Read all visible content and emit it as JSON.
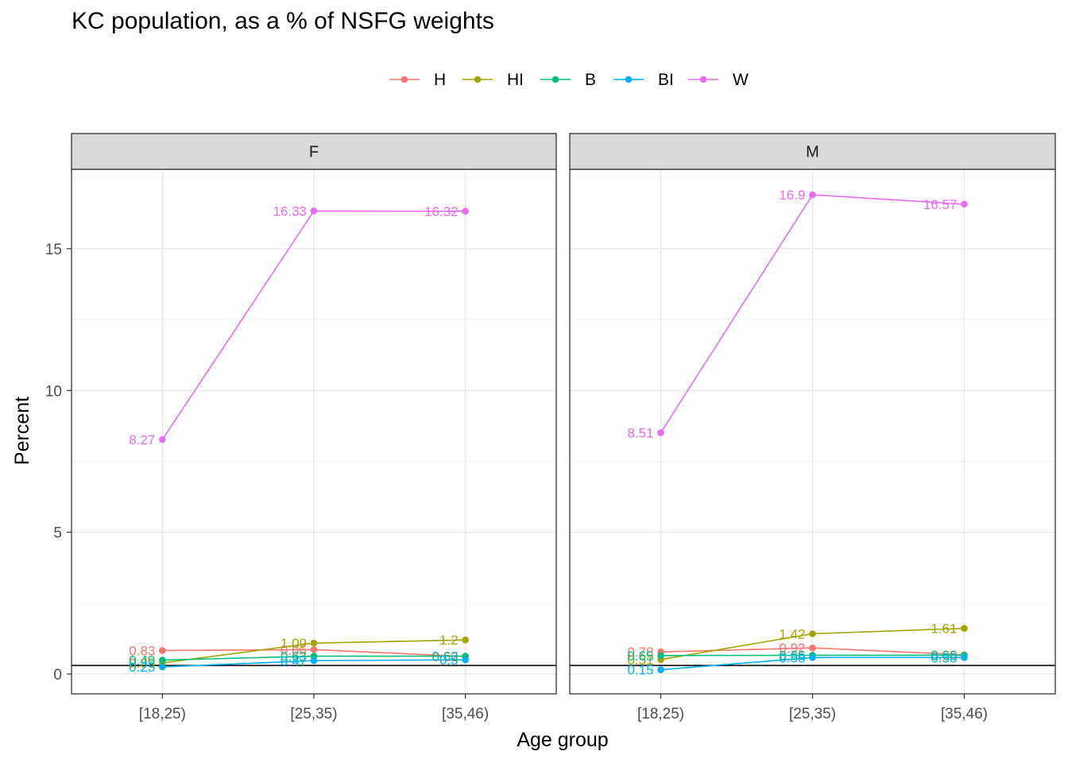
{
  "chart_data": {
    "type": "line",
    "title": "KC population, as a % of NSFG weights",
    "xlabel": "Age group",
    "ylabel": "Percent",
    "categories": [
      "[18,25)",
      "[25,35)",
      "[35,46)"
    ],
    "ylim": [
      -0.7,
      17.8
    ],
    "yticks": [
      0,
      5,
      10,
      15
    ],
    "reference_line": 0.3,
    "grid": true,
    "legend_position": "top",
    "legend": [
      {
        "name": "H",
        "color": "#F8766D"
      },
      {
        "name": "HI",
        "color": "#A3A500"
      },
      {
        "name": "B",
        "color": "#00BF7D"
      },
      {
        "name": "BI",
        "color": "#00B0F6"
      },
      {
        "name": "W",
        "color": "#E76BF3"
      }
    ],
    "panels": [
      {
        "facet": "F",
        "series": [
          {
            "name": "H",
            "values": [
              0.83,
              0.86,
              0.62
            ],
            "labels": [
              "0.83",
              "0.86",
              "0.62"
            ]
          },
          {
            "name": "HI",
            "values": [
              0.39,
              1.09,
              1.2
            ],
            "labels": [
              "0.39",
              "1.09",
              "1.2"
            ]
          },
          {
            "name": "B",
            "values": [
              0.49,
              0.63,
              0.63
            ],
            "labels": [
              "0.49",
              "0.63",
              "0.63"
            ]
          },
          {
            "name": "BI",
            "values": [
              0.25,
              0.47,
              0.5
            ],
            "labels": [
              "0.25",
              "0.47",
              "0.5"
            ]
          },
          {
            "name": "W",
            "values": [
              8.27,
              16.33,
              16.32
            ],
            "labels": [
              "8.27",
              "16.33",
              "16.32"
            ]
          }
        ]
      },
      {
        "facet": "M",
        "series": [
          {
            "name": "H",
            "values": [
              0.78,
              0.92,
              0.68
            ],
            "labels": [
              "0.78",
              "0.92",
              "0.68"
            ]
          },
          {
            "name": "HI",
            "values": [
              0.51,
              1.42,
              1.61
            ],
            "labels": [
              "0.51",
              "1.42",
              "1.61"
            ]
          },
          {
            "name": "B",
            "values": [
              0.65,
              0.66,
              0.66
            ],
            "labels": [
              "0.65",
              "0.66",
              "0.66"
            ]
          },
          {
            "name": "BI",
            "values": [
              0.15,
              0.58,
              0.58
            ],
            "labels": [
              "0.15",
              "0.58",
              "0.58"
            ]
          },
          {
            "name": "W",
            "values": [
              8.51,
              16.9,
              16.57
            ],
            "labels": [
              "8.51",
              "16.9",
              "16.57"
            ]
          }
        ]
      }
    ]
  }
}
